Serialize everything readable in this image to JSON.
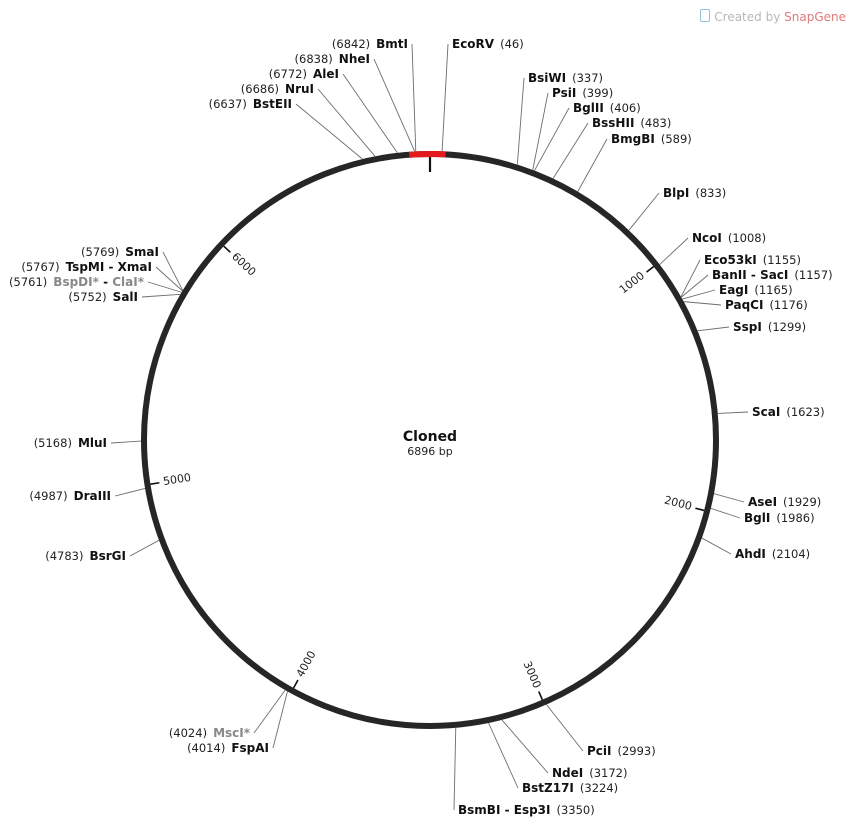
{
  "credit": {
    "prefix": "Created by",
    "brand": "SnapGene"
  },
  "plasmid": {
    "name": "Cloned",
    "length_label": "6896 bp",
    "length": 6896
  },
  "feature": {
    "start": 6896,
    "end": 60,
    "color": "#e41a1c"
  },
  "ticks": [
    {
      "value": 1000,
      "label": "1000"
    },
    {
      "value": 2000,
      "label": "2000"
    },
    {
      "value": 3000,
      "label": "3000"
    },
    {
      "value": 4000,
      "label": "4000"
    },
    {
      "value": 5000,
      "label": "5000"
    },
    {
      "value": 6000,
      "label": "6000"
    }
  ],
  "sites": [
    {
      "name": "EcoRV",
      "pos": "(46)",
      "bp": 46,
      "side": "right"
    },
    {
      "name": "BsiWI",
      "pos": "(337)",
      "bp": 337,
      "side": "right"
    },
    {
      "name": "PsiI",
      "pos": "(399)",
      "bp": 399,
      "side": "right"
    },
    {
      "name": "BglII",
      "pos": "(406)",
      "bp": 406,
      "side": "right"
    },
    {
      "name": "BssHII",
      "pos": "(483)",
      "bp": 483,
      "side": "right"
    },
    {
      "name": "BmgBI",
      "pos": "(589)",
      "bp": 589,
      "side": "right"
    },
    {
      "name": "BlpI",
      "pos": "(833)",
      "bp": 833,
      "side": "right"
    },
    {
      "name": "NcoI",
      "pos": "(1008)",
      "bp": 1008,
      "side": "right"
    },
    {
      "name": "Eco53kI",
      "pos": "(1155)",
      "bp": 1155,
      "side": "right"
    },
    {
      "name": "BanII",
      "name2": "SacI",
      "pos": "(1157)",
      "bp": 1157,
      "side": "right"
    },
    {
      "name": "EagI",
      "pos": "(1165)",
      "bp": 1165,
      "side": "right"
    },
    {
      "name": "PaqCI",
      "pos": "(1176)",
      "bp": 1176,
      "side": "right"
    },
    {
      "name": "SspI",
      "pos": "(1299)",
      "bp": 1299,
      "side": "right"
    },
    {
      "name": "ScaI",
      "pos": "(1623)",
      "bp": 1623,
      "side": "right"
    },
    {
      "name": "AseI",
      "pos": "(1929)",
      "bp": 1929,
      "side": "right"
    },
    {
      "name": "BglI",
      "pos": "(1986)",
      "bp": 1986,
      "side": "right"
    },
    {
      "name": "AhdI",
      "pos": "(2104)",
      "bp": 2104,
      "side": "right"
    },
    {
      "name": "PciI",
      "pos": "(2993)",
      "bp": 2993,
      "side": "right"
    },
    {
      "name": "NdeI",
      "pos": "(3172)",
      "bp": 3172,
      "side": "right"
    },
    {
      "name": "BstZ17I",
      "pos": "(3224)",
      "bp": 3224,
      "side": "right"
    },
    {
      "name": "BsmBI",
      "name2": "Esp3I",
      "pos": "(3350)",
      "bp": 3350,
      "side": "right"
    },
    {
      "name": "FspAI",
      "pos": "(4014)",
      "bp": 4014,
      "side": "left"
    },
    {
      "name": "MscI*",
      "pos": "(4024)",
      "bp": 4024,
      "side": "left",
      "gray": true
    },
    {
      "name": "BsrGI",
      "pos": "(4783)",
      "bp": 4783,
      "side": "left"
    },
    {
      "name": "DraIII",
      "pos": "(4987)",
      "bp": 4987,
      "side": "left"
    },
    {
      "name": "MluI",
      "pos": "(5168)",
      "bp": 5168,
      "side": "left"
    },
    {
      "name": "SalI",
      "pos": "(5752)",
      "bp": 5752,
      "side": "left"
    },
    {
      "name": "BspDI*",
      "name2": "ClaI*",
      "pos": "(5761)",
      "bp": 5761,
      "side": "left",
      "gray": true
    },
    {
      "name": "TspMI",
      "name2": "XmaI",
      "pos": "(5767)",
      "bp": 5767,
      "side": "left"
    },
    {
      "name": "SmaI",
      "pos": "(5769)",
      "bp": 5769,
      "side": "left"
    },
    {
      "name": "BstEII",
      "pos": "(6637)",
      "bp": 6637,
      "side": "left"
    },
    {
      "name": "NruI",
      "pos": "(6686)",
      "bp": 6686,
      "side": "left"
    },
    {
      "name": "AleI",
      "pos": "(6772)",
      "bp": 6772,
      "side": "left"
    },
    {
      "name": "NheI",
      "pos": "(6838)",
      "bp": 6838,
      "side": "left"
    },
    {
      "name": "BmtI",
      "pos": "(6842)",
      "bp": 6842,
      "side": "left"
    }
  ]
}
